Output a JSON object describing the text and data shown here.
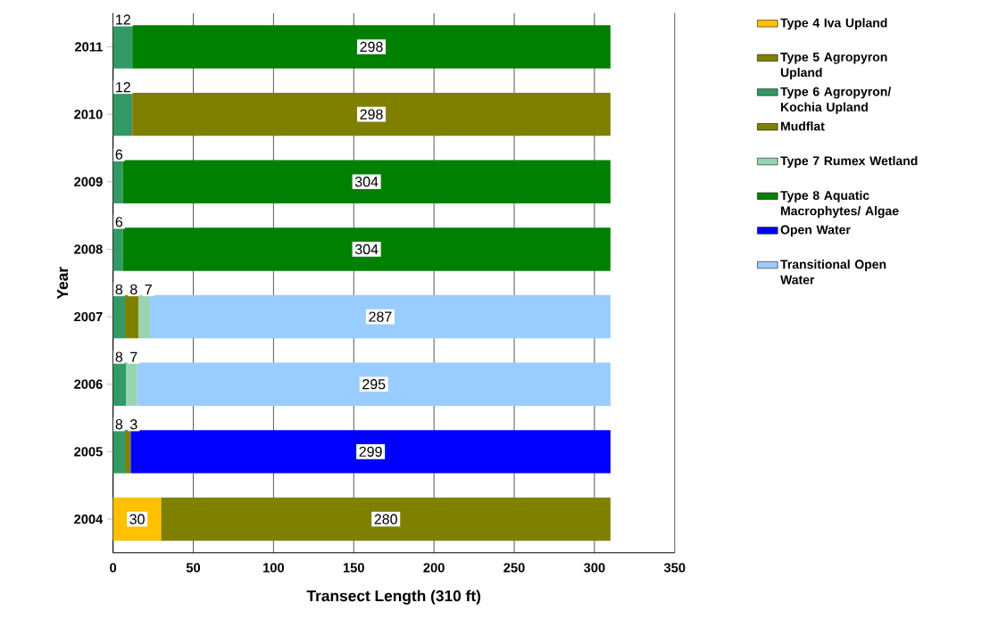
{
  "chart_data": {
    "type": "bar",
    "orientation": "horizontal",
    "stacked": true,
    "categories": [
      "2011",
      "2010",
      "2009",
      "2008",
      "2007",
      "2006",
      "2005",
      "2004"
    ],
    "series": [
      {
        "name": "Type 4 Iva Upland",
        "color": "#ffc000",
        "values": [
          null,
          null,
          null,
          null,
          null,
          null,
          null,
          30
        ]
      },
      {
        "name": "Type 5 Agropyron Upland",
        "color": "#808000",
        "values": [
          null,
          null,
          null,
          null,
          null,
          null,
          null,
          280
        ]
      },
      {
        "name": "Type 6 Agropyron/ Kochia Upland",
        "color": "#339966",
        "values": [
          12,
          12,
          6,
          6,
          8,
          8,
          8,
          null
        ]
      },
      {
        "name": "Mudflat",
        "color": "#808000",
        "values": [
          null,
          298,
          null,
          null,
          8,
          null,
          3,
          null
        ]
      },
      {
        "name": "Type 7 Rumex Wetland",
        "color": "#99d4b0",
        "values": [
          null,
          null,
          null,
          null,
          7,
          7,
          null,
          null
        ]
      },
      {
        "name": "Type 8 Aquatic Macrophytes/ Algae",
        "color": "#008000",
        "values": [
          298,
          null,
          304,
          304,
          null,
          null,
          null,
          null
        ]
      },
      {
        "name": "Open Water",
        "color": "#0000ff",
        "values": [
          null,
          null,
          null,
          null,
          null,
          null,
          299,
          null
        ]
      },
      {
        "name": "Transitional Open Water",
        "color": "#99ccff",
        "values": [
          null,
          null,
          null,
          null,
          287,
          295,
          null,
          null
        ]
      }
    ],
    "xlim": [
      0,
      350
    ],
    "xticks": [
      0,
      50,
      100,
      150,
      200,
      250,
      300,
      350
    ],
    "xlabel": "Transect Length (310 ft)",
    "ylabel": "Year",
    "grid": "x",
    "legend": "right",
    "data_labels": true
  }
}
